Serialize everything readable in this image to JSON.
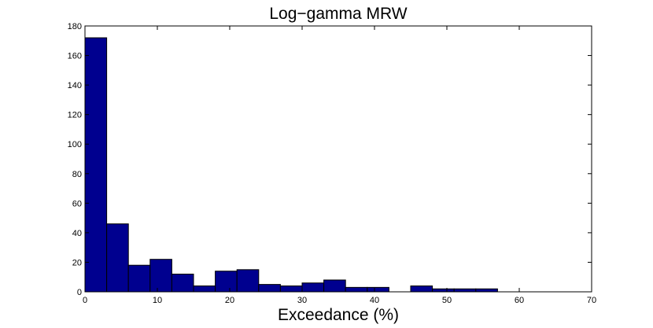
{
  "chart_data": {
    "type": "bar",
    "title": "Log−gamma MRW",
    "xlabel": "Exceedance (%)",
    "ylabel": "",
    "xlim": [
      0,
      70
    ],
    "ylim": [
      0,
      180
    ],
    "xticks": [
      "0",
      "10",
      "20",
      "30",
      "40",
      "50",
      "60",
      "70"
    ],
    "yticks": [
      "0",
      "20",
      "40",
      "60",
      "80",
      "100",
      "120",
      "140",
      "160",
      "180"
    ],
    "bin_edges": [
      0,
      3,
      6,
      9,
      12,
      15,
      18,
      21,
      24,
      27,
      30,
      33,
      36,
      39,
      42,
      45,
      48,
      51,
      54,
      57
    ],
    "values": [
      172,
      46,
      18,
      22,
      12,
      4,
      14,
      15,
      5,
      4,
      6,
      8,
      3,
      3,
      0,
      4,
      2,
      2,
      2
    ],
    "bar_color": "#00008f",
    "grid": false
  }
}
